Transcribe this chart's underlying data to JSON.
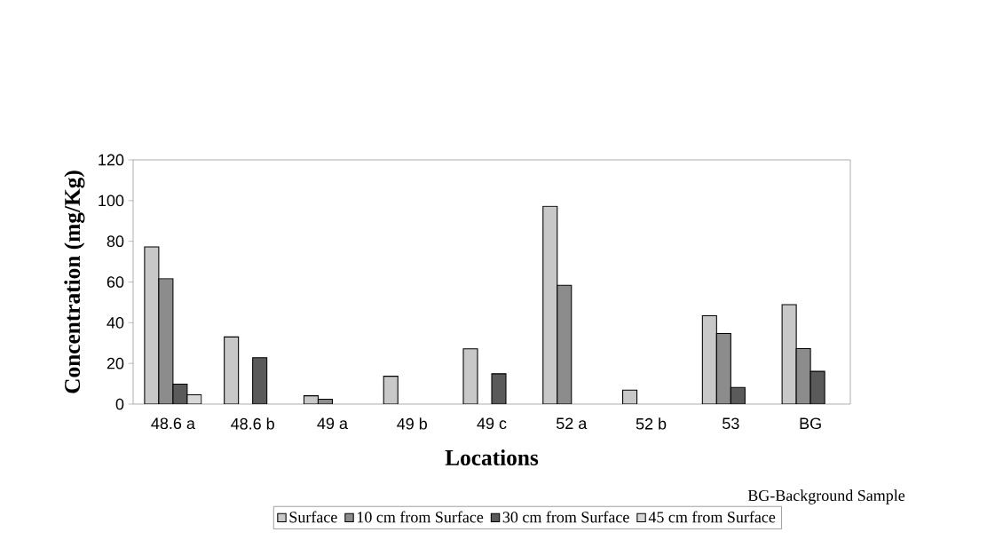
{
  "chart_data": {
    "type": "bar",
    "xlabel": "Locations",
    "ylabel": "Concentration (mg/Kg)",
    "categories": [
      "48.6 a",
      "48.6 b",
      "49 a",
      "49 b",
      "49 c",
      "52 a",
      "52 b",
      "53",
      "BG"
    ],
    "series": [
      {
        "name": "Surface",
        "color": "#c8c8c8",
        "values": [
          77.2,
          33,
          4.1,
          13.7,
          27.2,
          97.2,
          6.9,
          43.4,
          48.9
        ]
      },
      {
        "name": "10 cm from Surface",
        "color": "#8c8c8c",
        "values": [
          61.6,
          null,
          2.4,
          null,
          null,
          58.4,
          null,
          34.7,
          27.3
        ]
      },
      {
        "name": "30 cm from Surface",
        "color": "#5a5a5a",
        "values": [
          9.8,
          22.8,
          null,
          null,
          14.9,
          null,
          null,
          8.2,
          16.1
        ]
      },
      {
        "name": "45 cm from Surface",
        "color": "#d8d8d8",
        "values": [
          4.6,
          null,
          null,
          null,
          null,
          null,
          null,
          null,
          null
        ]
      }
    ],
    "ylim": [
      0,
      120
    ],
    "yticks": [
      0,
      20,
      40,
      60,
      80,
      100,
      120
    ],
    "legend": "bottom",
    "grid": false,
    "annotations": [
      "BG-Background Sample"
    ]
  }
}
